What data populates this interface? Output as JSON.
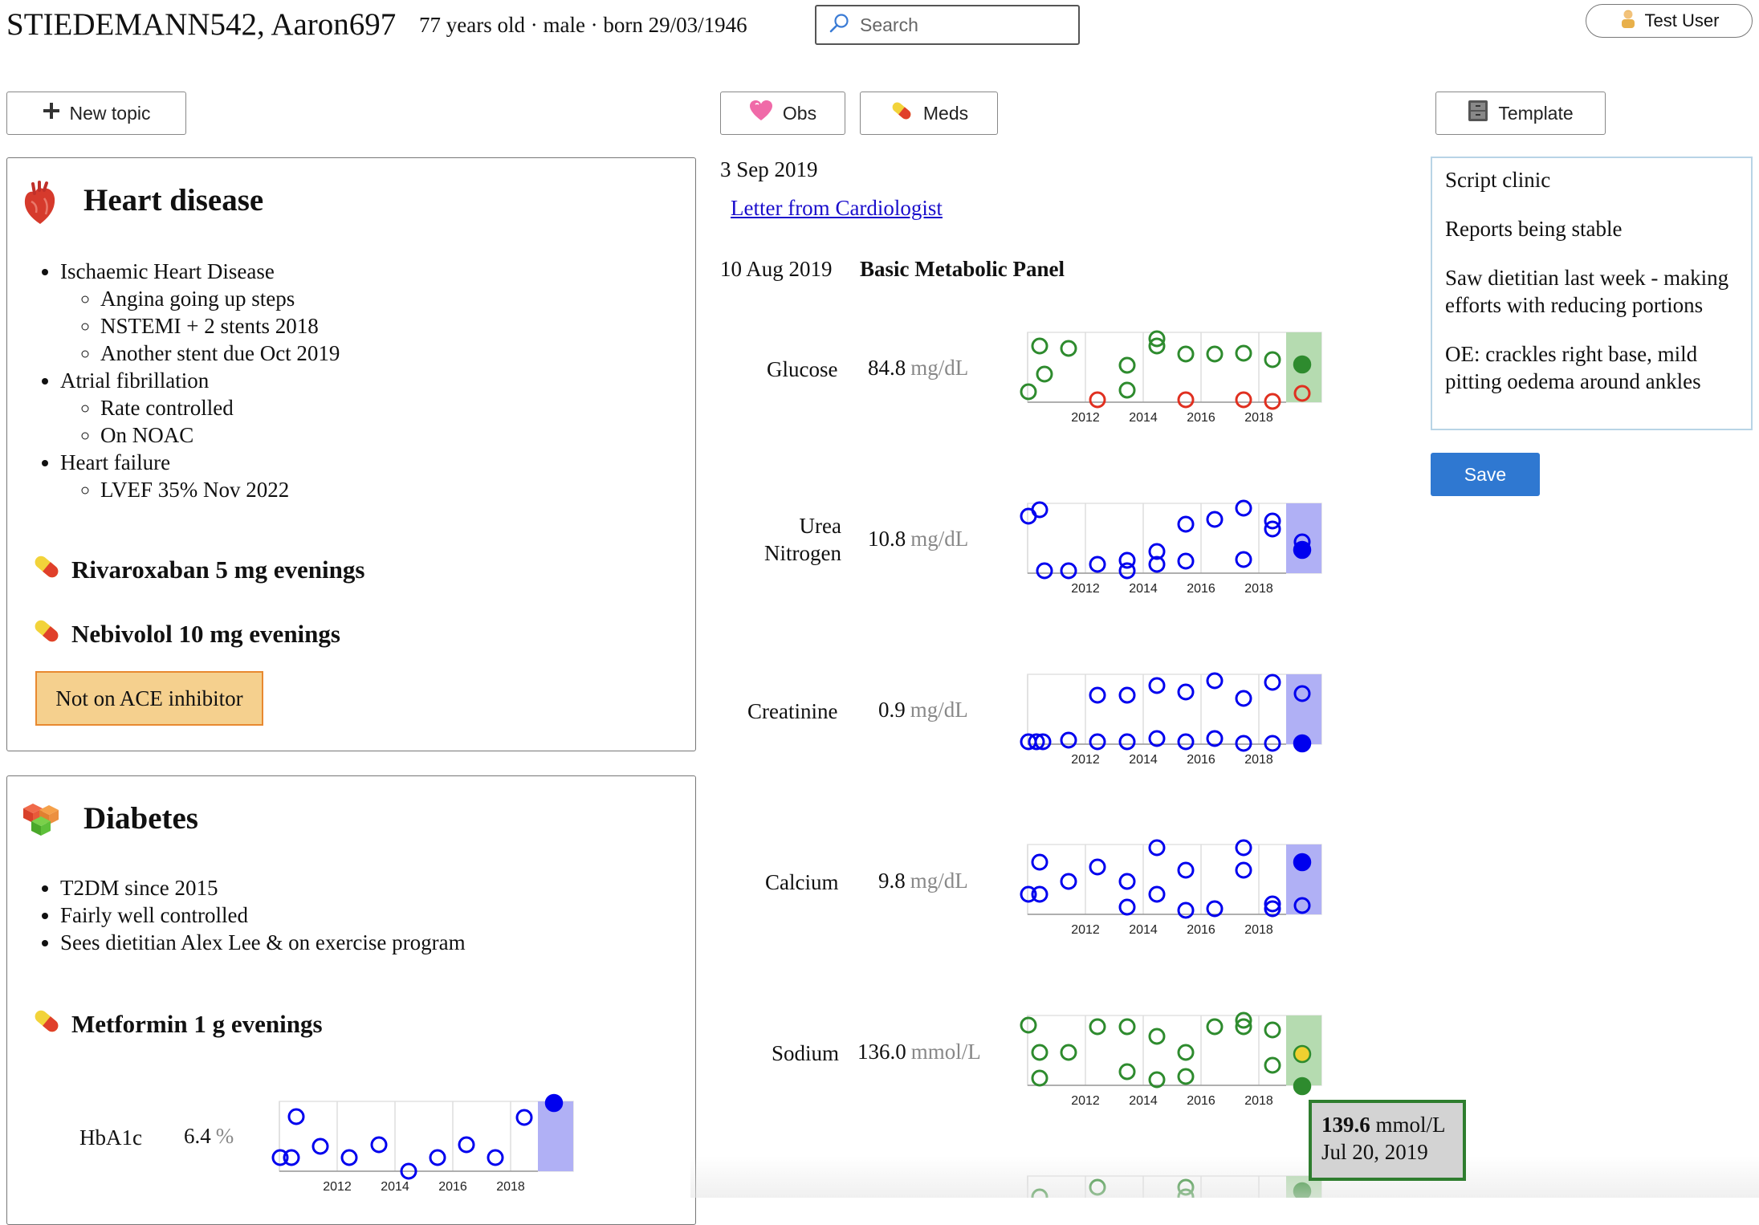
{
  "header": {
    "patient_name": "STIEDEMANN542, Aaron697",
    "patient_meta": "77 years old · male · born 29/03/1946",
    "search_placeholder": "Search",
    "user_label": "Test User"
  },
  "toolbar": {
    "new_topic": "New topic",
    "obs": "Obs",
    "meds": "Meds",
    "template": "Template"
  },
  "topics": [
    {
      "title": "Heart disease",
      "items": [
        {
          "label": "Ischaemic Heart Disease",
          "sub": [
            "Angina going up steps",
            "NSTEMI + 2 stents 2018",
            "Another stent due Oct 2019"
          ]
        },
        {
          "label": "Atrial fibrillation",
          "sub": [
            "Rate controlled",
            "On NOAC"
          ]
        },
        {
          "label": "Heart failure",
          "sub": [
            "LVEF 35% Nov 2022"
          ]
        }
      ],
      "meds": [
        "Rivaroxaban 5 mg evenings",
        "Nebivolol 10 mg evenings"
      ],
      "warning": "Not on ACE inhibitor"
    },
    {
      "title": "Diabetes",
      "items": [
        "T2DM since 2015",
        "Fairly well controlled",
        "Sees dietitian Alex Lee & on exercise program"
      ],
      "meds": [
        "Metformin 1 g evenings"
      ],
      "lab": {
        "name": "HbA1c",
        "value": "6.4",
        "unit": "%"
      }
    }
  ],
  "timeline": {
    "entry1_date": "3 Sep 2019",
    "entry1_link": "Letter from Cardiologist",
    "entry2_date": "10 Aug 2019",
    "entry2_title": "Basic Metabolic Panel",
    "labs": [
      {
        "name": "Glucose",
        "value": "84.8",
        "unit": "mg/dL"
      },
      {
        "name": "Urea Nitrogen",
        "name_line1": "Urea",
        "name_line2": "Nitrogen",
        "value": "10.8",
        "unit": "mg/dL"
      },
      {
        "name": "Creatinine",
        "value": "0.9",
        "unit": "mg/dL"
      },
      {
        "name": "Calcium",
        "value": "9.8",
        "unit": "mg/dL"
      },
      {
        "name": "Sodium",
        "value": "136.0",
        "unit": "mmol/L"
      }
    ],
    "tooltip": {
      "value": "139.6",
      "unit": "mmol/L",
      "date": "Jul 20, 2019"
    }
  },
  "notes": {
    "lines": [
      "Script clinic",
      "Reports being stable",
      "Saw dietitian last week - making efforts with reducing portions",
      "OE: crackles right base, mild pitting oedema around ankles"
    ],
    "save": "Save"
  },
  "sparklines": {
    "year_ticks": [
      "2012",
      "2014",
      "2016",
      "2018"
    ],
    "colors": {
      "normal": "#2e8b2e",
      "abnormal": "#e03020",
      "neutral": "#0000ee",
      "green_band": "#b5dbb0",
      "blue_band": "#b0b0f5",
      "highlight": "#f0d030"
    }
  }
}
